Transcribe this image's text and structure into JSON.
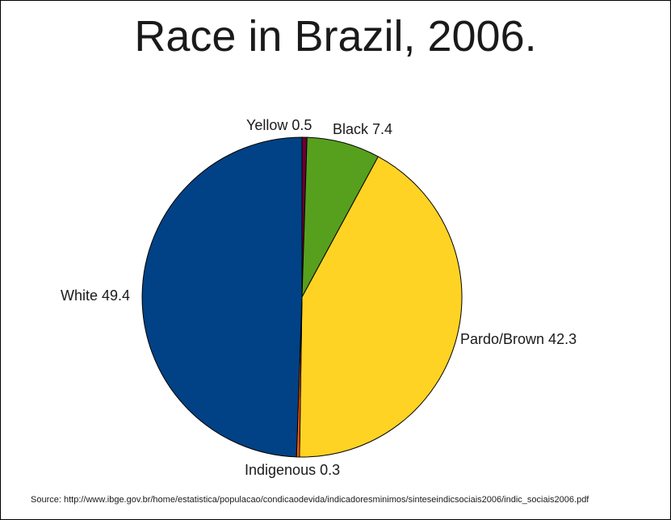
{
  "chart_data": {
    "type": "pie",
    "title": "Race in Brazil, 2006.",
    "slices": [
      {
        "label": "Yellow",
        "value": 0.5,
        "color": "#6b0033"
      },
      {
        "label": "Black",
        "value": 7.4,
        "color": "#56a01e"
      },
      {
        "label": "Pardo/Brown",
        "value": 42.3,
        "color": "#ffd324"
      },
      {
        "label": "Indigenous",
        "value": 0.3,
        "color": "#ff5a00"
      },
      {
        "label": "White",
        "value": 49.4,
        "color": "#004285"
      }
    ],
    "start": "12 o'clock",
    "direction": "clockwise",
    "source": "Source: http://www.ibge.gov.br/home/estatistica/populacao/condicaodevida/indicadoresminimos/sinteseindicsociais2006/indic_sociais2006.pdf"
  }
}
